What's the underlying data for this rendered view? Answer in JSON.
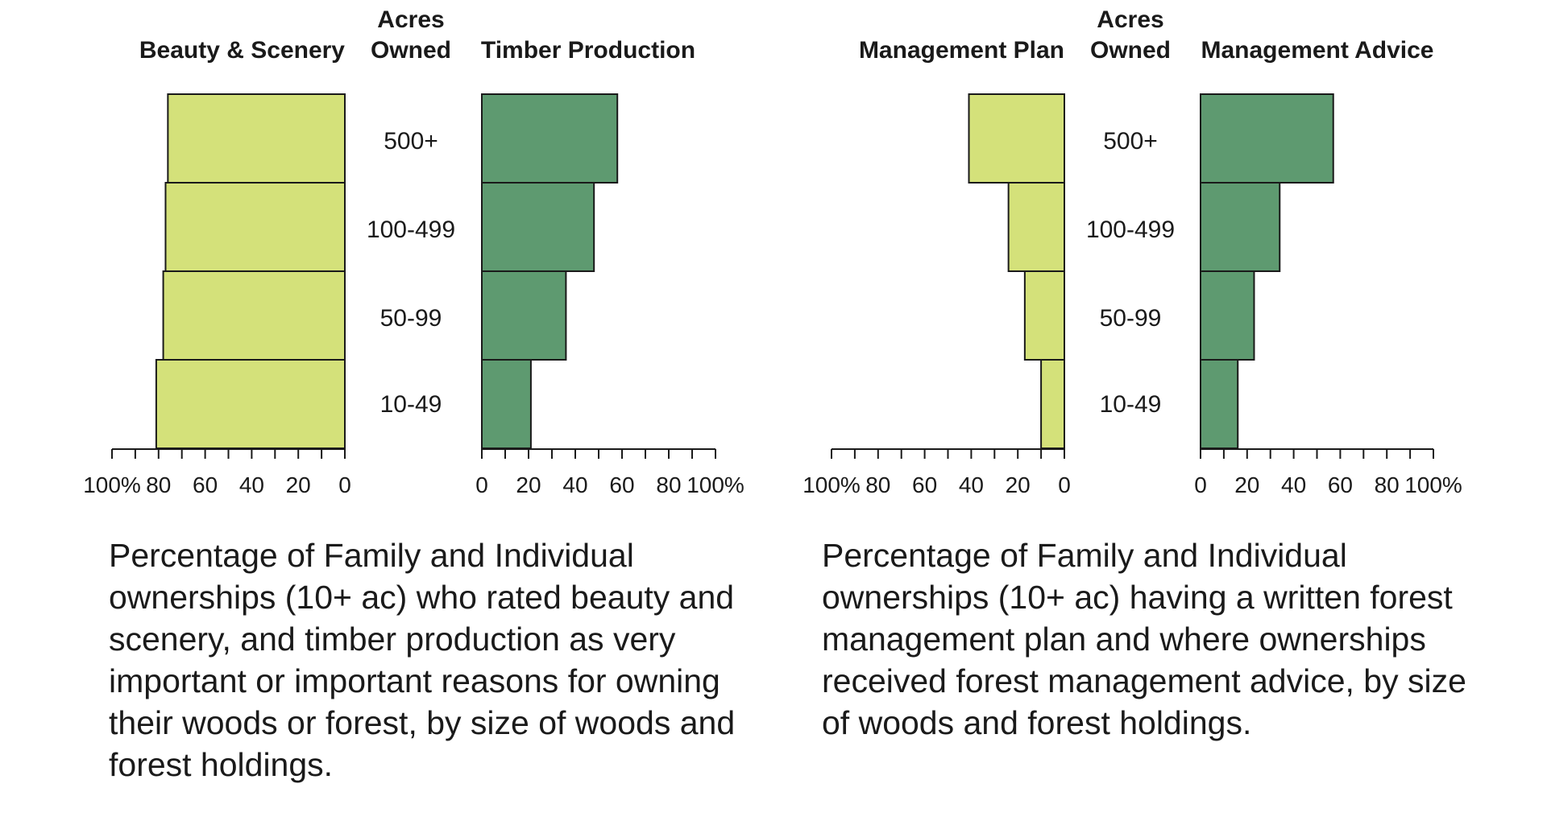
{
  "chart_data": [
    {
      "type": "bar",
      "orientation": "horizontal",
      "layout": "back-to-back",
      "center_header": [
        "Acres",
        "Owned"
      ],
      "categories": [
        "500+",
        "100-499",
        "50-99",
        "10-49"
      ],
      "left": {
        "name": "Beauty & Scenery",
        "values": [
          76,
          77,
          78,
          81
        ],
        "ticks": [
          "100%",
          "80",
          "60",
          "40",
          "20",
          "0"
        ],
        "xlim": [
          0,
          100
        ]
      },
      "right": {
        "name": "Timber Production",
        "values": [
          58,
          48,
          36,
          21
        ],
        "ticks": [
          "0",
          "20",
          "40",
          "60",
          "80",
          "100%"
        ],
        "xlim": [
          0,
          100
        ]
      },
      "caption": [
        "Percentage of Family and Individual",
        "ownerships (10+ ac) who rated beauty and",
        "scenery, and timber production as very",
        "important or important reasons for owning",
        "their woods or forest, by size of woods and",
        "forest holdings."
      ]
    },
    {
      "type": "bar",
      "orientation": "horizontal",
      "layout": "back-to-back",
      "center_header": [
        "Acres",
        "Owned"
      ],
      "categories": [
        "500+",
        "100-499",
        "50-99",
        "10-49"
      ],
      "left": {
        "name": "Management Plan",
        "values": [
          41,
          24,
          17,
          10
        ],
        "ticks": [
          "100%",
          "80",
          "60",
          "40",
          "20",
          "0"
        ],
        "xlim": [
          0,
          100
        ]
      },
      "right": {
        "name": "Management Advice",
        "values": [
          57,
          34,
          23,
          16
        ],
        "ticks": [
          "0",
          "20",
          "40",
          "60",
          "80",
          "100%"
        ],
        "xlim": [
          0,
          100
        ]
      },
      "caption": [
        "Percentage of Family and Individual",
        "ownerships (10+ ac) having a written forest",
        "management plan and where ownerships",
        "received forest management advice, by size",
        "of woods and forest holdings."
      ]
    }
  ],
  "colors": {
    "left_fill": "#d4e17a",
    "right_fill": "#5e9a70",
    "bar_stroke": "#1a1a1a",
    "axis": "#1a1a1a",
    "text": "#1a1a1a"
  }
}
